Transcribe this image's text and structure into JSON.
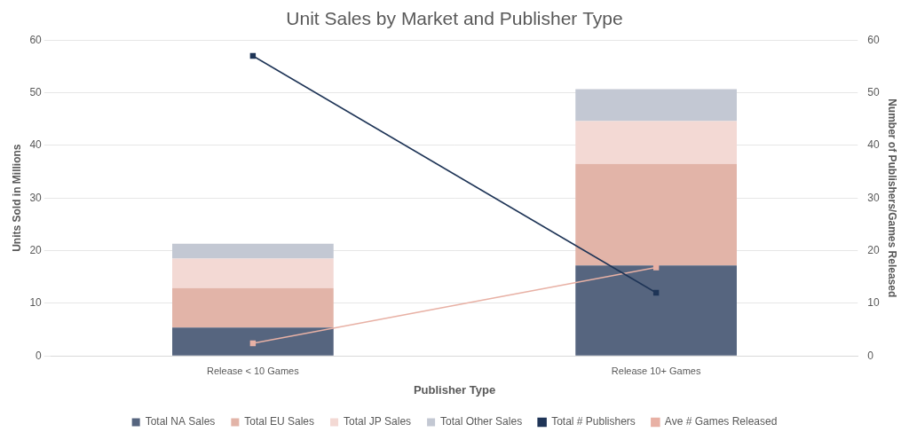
{
  "chart_data": {
    "type": "bar",
    "title": "Unit Sales by Market and Publisher Type",
    "x_label": "Publisher Type",
    "y_label": "Units Sold in Millions",
    "y2_label": "Number of Publishers/Games Released",
    "categories": [
      "Release < 10 Games",
      "Release 10+ Games"
    ],
    "series": [
      {
        "name": "Total NA Sales",
        "type": "bar",
        "color": "#56657f",
        "values": [
          5.4,
          17.2
        ]
      },
      {
        "name": "Total EU Sales",
        "type": "bar",
        "color": "#e2b4a8",
        "values": [
          7.5,
          19.3
        ]
      },
      {
        "name": "Total JP Sales",
        "type": "bar",
        "color": "#f3d9d4",
        "values": [
          5.6,
          8.1
        ]
      },
      {
        "name": "Total Other Sales",
        "type": "bar",
        "color": "#c3c8d3",
        "values": [
          2.8,
          6.1
        ]
      },
      {
        "name": "Total # Publishers",
        "type": "line",
        "axis": "y2",
        "color": "#1f3557",
        "marker": "square",
        "line_style": "solid",
        "values": [
          57,
          12
        ]
      },
      {
        "name": "Ave # Games Released",
        "type": "line",
        "axis": "y2",
        "color": "#e8b1a5",
        "marker": "square",
        "line_style": "solid",
        "values": [
          2.4,
          16.8
        ]
      }
    ],
    "ylim": [
      0,
      60
    ],
    "yticks": [
      0,
      10,
      20,
      30,
      40,
      50,
      60
    ],
    "y2lim": [
      0,
      60
    ],
    "y2ticks": [
      0,
      10,
      20,
      30,
      40,
      50,
      60
    ],
    "stacked": true,
    "grid": true,
    "legend": "bottom"
  }
}
